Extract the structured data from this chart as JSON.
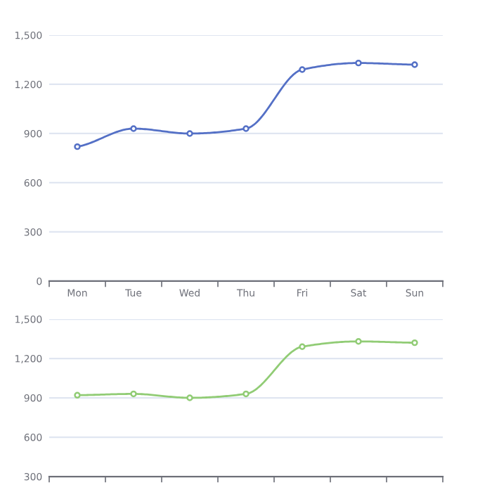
{
  "chart_data": [
    {
      "type": "line",
      "categories": [
        "Mon",
        "Tue",
        "Wed",
        "Thu",
        "Fri",
        "Sat",
        "Sun"
      ],
      "series": [
        {
          "color": "#5470c6",
          "values": [
            820,
            930,
            900,
            930,
            1290,
            1330,
            1320
          ]
        }
      ],
      "ylim": [
        0,
        1500
      ],
      "yticks": [
        0,
        {
          "value": 300,
          "label": "300"
        },
        {
          "value": 600,
          "label": "600"
        },
        {
          "value": 900,
          "label": "900"
        },
        {
          "value": 1200,
          "label": "1,200"
        },
        {
          "value": 1500,
          "label": "1,500"
        }
      ],
      "grid": "y",
      "marker": "circle",
      "line_style": "solid"
    },
    {
      "type": "line",
      "categories": [
        null,
        null,
        null,
        null,
        null,
        null,
        null
      ],
      "series": [
        {
          "color": "#91cc75",
          "values": [
            920,
            930,
            900,
            930,
            1290,
            1330,
            1320
          ]
        }
      ],
      "ylim": [
        300,
        1500
      ],
      "yticks": [
        {
          "value": 300,
          "label": "300"
        },
        {
          "value": 600,
          "label": "600"
        },
        {
          "value": 900,
          "label": "900"
        },
        {
          "value": 1200,
          "label": "1,200"
        },
        {
          "value": 1500,
          "label": "1,500"
        }
      ],
      "grid": "y",
      "marker": "circle",
      "line_style": "solid",
      "tick_labels": "y"
    }
  ]
}
